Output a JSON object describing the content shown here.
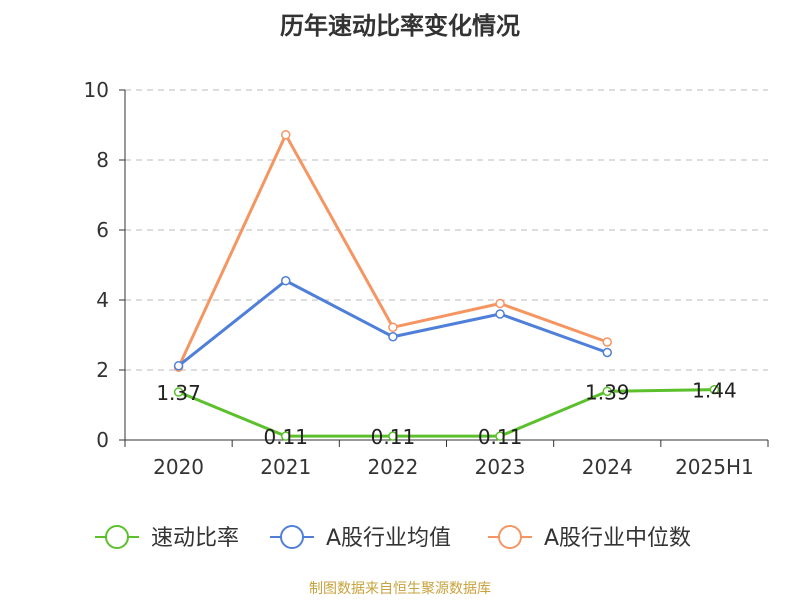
{
  "source": "制图数据来自恒生聚源数据库",
  "colors": {
    "axis": "#333333",
    "grid": "#bbbbbb"
  },
  "chart_data": {
    "type": "line",
    "title": "历年速动比率变化情况",
    "categories": [
      "2020",
      "2021",
      "2022",
      "2023",
      "2024",
      "2025H1"
    ],
    "ylim": [
      0,
      10
    ],
    "yticks": [
      0,
      2,
      4,
      6,
      8,
      10
    ],
    "grid": true,
    "legend_position": "bottom",
    "series": [
      {
        "name": "速动比率",
        "color": "#5cc02d",
        "values": [
          1.37,
          0.11,
          0.11,
          0.11,
          1.39,
          1.44
        ],
        "labels": [
          "1.37",
          "0.11",
          "0.11",
          "0.11",
          "1.39",
          "1.44"
        ]
      },
      {
        "name": "A股行业均值",
        "color": "#4f7fd9",
        "values": [
          2.12,
          4.55,
          2.95,
          3.6,
          2.5,
          null
        ]
      },
      {
        "name": "A股行业中位数",
        "color": "#f59562",
        "values": [
          2.08,
          8.72,
          3.22,
          3.9,
          2.8,
          null
        ]
      }
    ]
  }
}
